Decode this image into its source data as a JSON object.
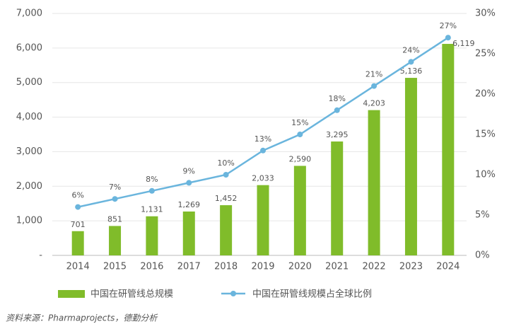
{
  "chart_data": {
    "type": "bar+line",
    "categories": [
      "2014",
      "2015",
      "2016",
      "2017",
      "2018",
      "2019",
      "2020",
      "2021",
      "2022",
      "2023",
      "2024"
    ],
    "series": [
      {
        "name": "中国在研管线总规模",
        "type": "bar",
        "color": "#80bc2a",
        "values": [
          701,
          851,
          1131,
          1269,
          1452,
          2033,
          2590,
          3295,
          4203,
          5136,
          6119
        ],
        "value_labels": [
          "701",
          "851",
          "1,131",
          "1,269",
          "1,452",
          "2,033",
          "2,590",
          "3,295",
          "4,203",
          "5,136",
          "6,119"
        ]
      },
      {
        "name": "中国在研管线规模占全球比例",
        "type": "line",
        "axis": "y2",
        "color": "#6ab5dd",
        "values": [
          6,
          7,
          8,
          9,
          10,
          13,
          15,
          18,
          21,
          24,
          27
        ],
        "value_labels": [
          "6%",
          "7%",
          "8%",
          "9%",
          "10%",
          "13%",
          "15%",
          "18%",
          "21%",
          "24%",
          "27%"
        ]
      }
    ],
    "ylim": [
      0,
      7000
    ],
    "yticks": [
      {
        "value": 0,
        "label": "-"
      },
      {
        "value": 1000,
        "label": "1,000"
      },
      {
        "value": 2000,
        "label": "2,000"
      },
      {
        "value": 3000,
        "label": "3,000"
      },
      {
        "value": 4000,
        "label": "4,000"
      },
      {
        "value": 5000,
        "label": "5,000"
      },
      {
        "value": 6000,
        "label": "6,000"
      },
      {
        "value": 7000,
        "label": "7,000"
      }
    ],
    "y2lim": [
      0,
      30
    ],
    "y2ticks": [
      {
        "value": 0,
        "label": "0%"
      },
      {
        "value": 5,
        "label": "5%"
      },
      {
        "value": 10,
        "label": "10%"
      },
      {
        "value": 15,
        "label": "15%"
      },
      {
        "value": 20,
        "label": "20%"
      },
      {
        "value": 25,
        "label": "25%"
      },
      {
        "value": 30,
        "label": "30%"
      }
    ],
    "grid": true,
    "legend": "bottom",
    "source": "资料来源：Pharmaprojects，德勤分析"
  }
}
